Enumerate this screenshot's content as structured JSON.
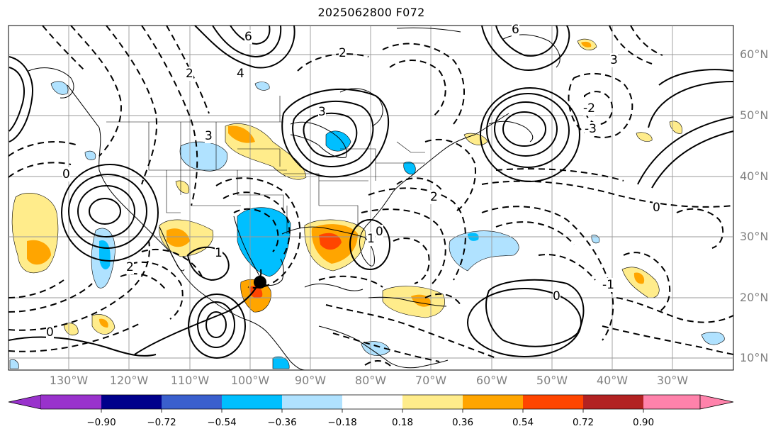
{
  "title": "2025062800 F072",
  "lat_labels": [
    "60°N",
    "50°N",
    "40°N",
    "30°N",
    "20°N",
    "10°N"
  ],
  "lon_labels": [
    "130°W",
    "120°W",
    "110°W",
    "100°W",
    "90°W",
    "80°W",
    "70°W",
    "60°W",
    "50°W",
    "40°W",
    "30°W"
  ],
  "colorbar": {
    "colors": [
      "#9932cc",
      "#00008b",
      "#3a5fcd",
      "#00bfff",
      "#b0e2ff",
      "#ffffff",
      "#ffec8b",
      "#ffa500",
      "#ff4500",
      "#b22222",
      "#ff82ab"
    ],
    "tick_labels": [
      "−0.90",
      "−0.72",
      "−0.54",
      "−0.36",
      "−0.18",
      "0.18",
      "0.36",
      "0.54",
      "0.72",
      "0.90"
    ]
  },
  "contour_labels": [
    "6",
    "6",
    "4",
    "3",
    "3",
    "3",
    "2",
    "2",
    "2",
    "2",
    "1",
    "1",
    "0",
    "0",
    "0",
    "0",
    "0",
    "-1",
    "-2",
    "-3"
  ],
  "storm_marker": "center-dot",
  "colors": {
    "land_outline": "#000000",
    "grid": "#999999",
    "contour": "#000000"
  }
}
